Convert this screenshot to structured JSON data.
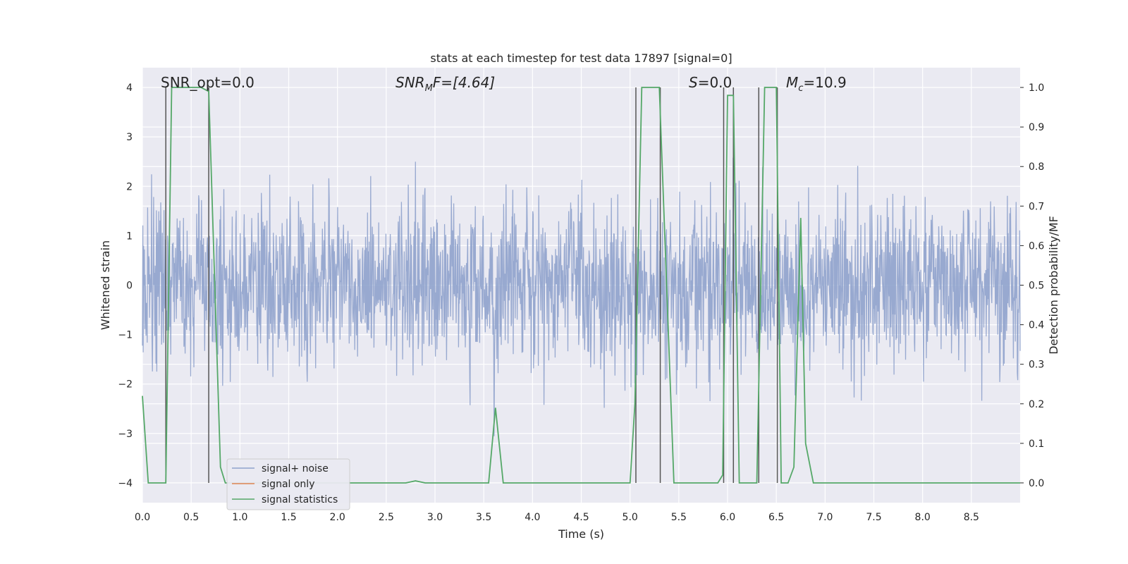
{
  "chart_data": {
    "type": "line",
    "title": "stats at each timestep for test data 17897 [signal=0]",
    "xlabel": "Time (s)",
    "ylabel_left": "Whitened strain",
    "ylabel_right": "Detection probability/MF",
    "xlim": [
      0,
      9.0
    ],
    "ylim_left": [
      -4.4,
      4.4
    ],
    "ylim_right": [
      -0.05,
      1.05
    ],
    "xticks": [
      "0.0",
      "0.5",
      "1.0",
      "1.5",
      "2.0",
      "2.5",
      "3.0",
      "3.5",
      "4.0",
      "4.5",
      "5.0",
      "5.5",
      "6.0",
      "6.5",
      "7.0",
      "7.5",
      "8.0",
      "8.5"
    ],
    "yticks_left": [
      "4",
      "3",
      "2",
      "1",
      "0",
      "−1",
      "−2",
      "−3",
      "−4"
    ],
    "yticks_right": [
      "1.0",
      "0.9",
      "0.8",
      "0.7",
      "0.6",
      "0.5",
      "0.4",
      "0.3",
      "0.2",
      "0.1",
      "0.0"
    ],
    "annotations": {
      "snr_opt": "SNR_opt=0.0",
      "snr_mf_prefix": "SNR",
      "snr_mf_sub": "M",
      "snr_mf_suffix": "F=[4.64]",
      "s_symbol": "S",
      "s_value": "=0.0",
      "mc_symbol": "M",
      "mc_sub": "c",
      "mc_value": "=10.9"
    },
    "series": [
      {
        "name": "signal+ noise",
        "color": "#8fa2cc",
        "generated_noise": {
          "sigma": 0.82,
          "n_samples": 2200,
          "seed": 17897
        }
      },
      {
        "name": "signal only",
        "color": "#dd8452",
        "x": [],
        "y": []
      },
      {
        "name": "signal statistics",
        "color": "#55a868",
        "x": [
          0.0,
          0.06,
          0.24,
          0.3,
          0.35,
          0.6,
          0.68,
          0.8,
          0.85,
          2.7,
          2.8,
          2.9,
          3.55,
          3.62,
          3.7,
          4.5,
          5.0,
          5.05,
          5.12,
          5.3,
          5.45,
          5.6,
          5.9,
          5.95,
          6.0,
          6.06,
          6.12,
          6.2,
          6.3,
          6.38,
          6.43,
          6.5,
          6.55,
          6.62,
          6.68,
          6.75,
          6.8,
          6.88,
          6.95,
          8.0,
          9.0
        ],
        "y": [
          0.22,
          0.0,
          0.0,
          1.0,
          1.0,
          1.0,
          0.99,
          0.04,
          0.0,
          0.0,
          0.005,
          0.0,
          0.0,
          0.19,
          0.0,
          0.0,
          0.0,
          0.2,
          1.0,
          1.0,
          0.0,
          0.0,
          0.0,
          0.02,
          0.98,
          0.98,
          0.0,
          0.0,
          0.0,
          1.0,
          1.0,
          1.0,
          0.0,
          0.0,
          0.04,
          0.67,
          0.1,
          0.0,
          0.0,
          0.0,
          0.0
        ]
      }
    ],
    "vertical_lines_x": [
      0.24,
      0.68,
      5.06,
      5.31,
      5.96,
      6.06,
      6.32,
      6.51
    ],
    "legend_placement": "lower-left"
  }
}
